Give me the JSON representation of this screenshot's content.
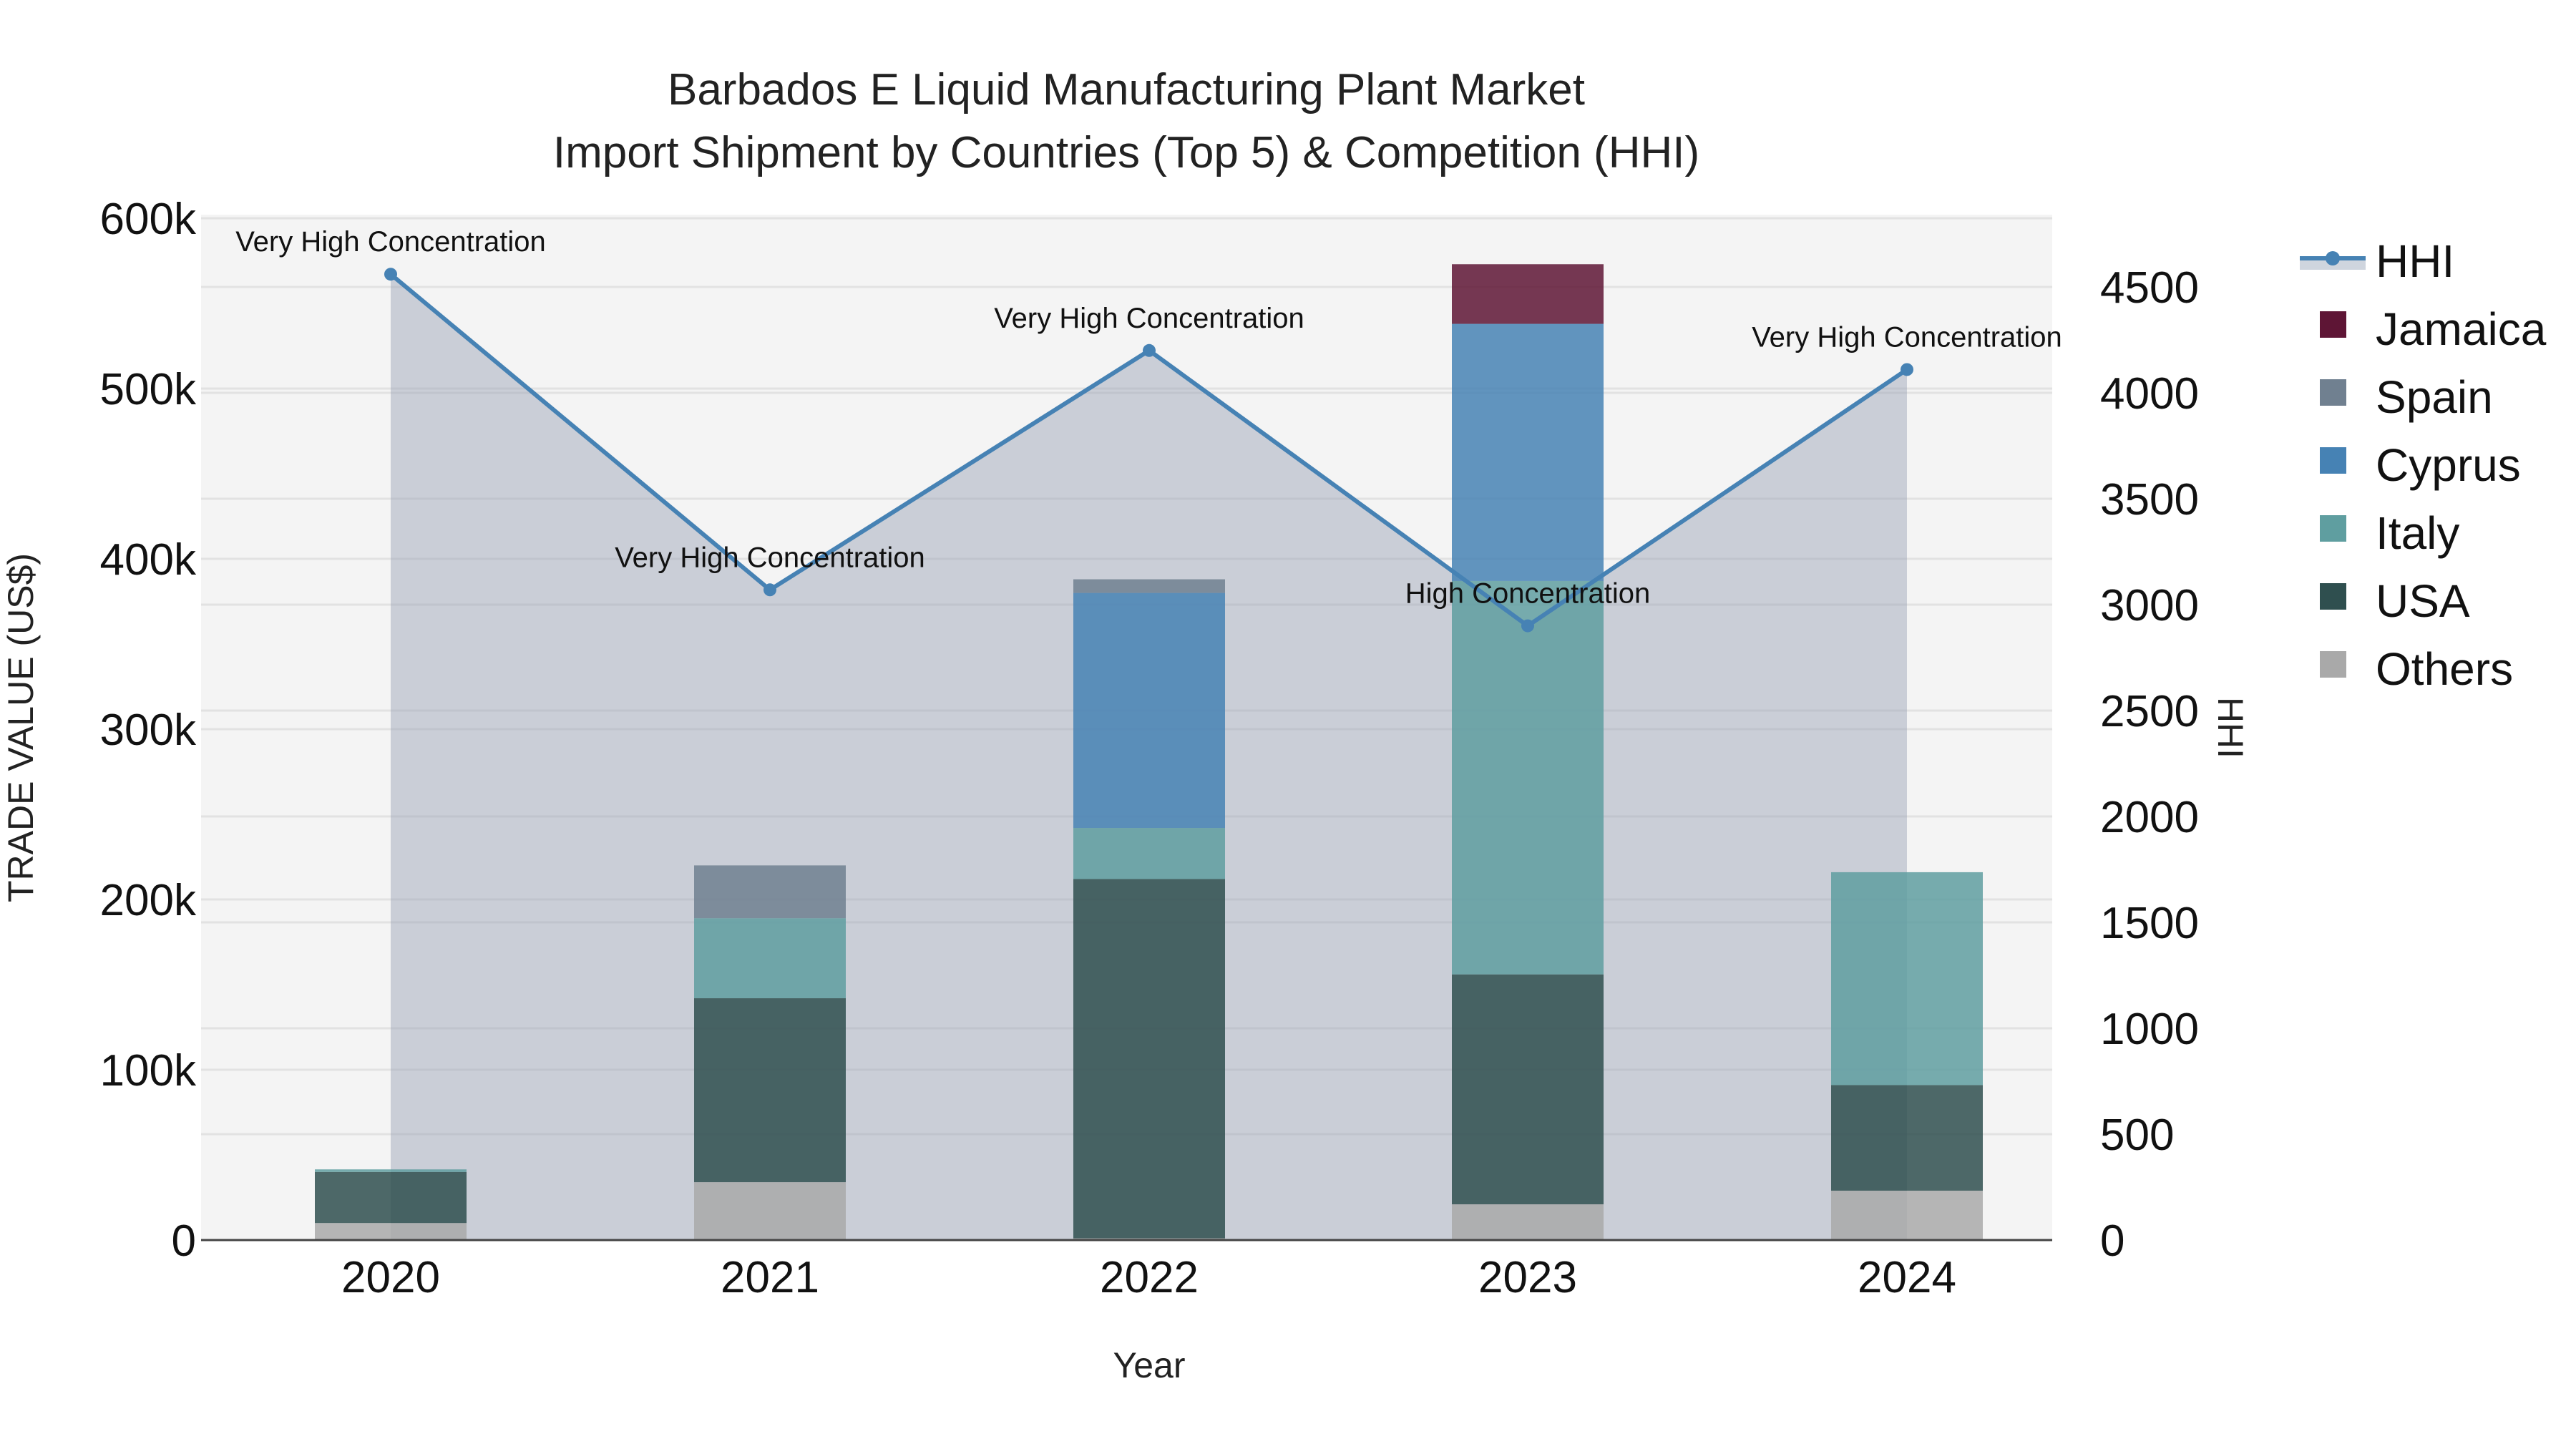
{
  "title": {
    "line1": "Barbados E Liquid Manufacturing Plant Market",
    "line2": "Import Shipment by Countries (Top 5) & Competition (HHI)"
  },
  "axes": {
    "x_title": "Year",
    "y_left_title": "TRADE VALUE (US$)",
    "y_right_title": "HHI",
    "y_left_ticks": [
      "0",
      "100k",
      "200k",
      "300k",
      "400k",
      "500k",
      "600k"
    ],
    "y_right_ticks": [
      "0",
      "500",
      "1000",
      "1500",
      "2000",
      "2500",
      "3000",
      "3500",
      "4000",
      "4500"
    ]
  },
  "legend": {
    "items": [
      {
        "label": "HHI",
        "type": "line",
        "color": "#4682b4"
      },
      {
        "label": "Jamaica",
        "type": "bar",
        "color": "#5e1535"
      },
      {
        "label": "Spain",
        "type": "bar",
        "color": "#708090"
      },
      {
        "label": "Cyprus",
        "type": "bar",
        "color": "#4682b4"
      },
      {
        "label": "Italy",
        "type": "bar",
        "color": "#5f9ea0"
      },
      {
        "label": "USA",
        "type": "bar",
        "color": "#2f4f4f"
      },
      {
        "label": "Others",
        "type": "bar",
        "color": "#a9a9a9"
      }
    ]
  },
  "chart_data": {
    "type": "bar",
    "subtype": "stacked bar with HHI line on secondary axis",
    "title": "Barbados E Liquid Manufacturing Plant Market — Import Shipment by Countries (Top 5) & Competition (HHI)",
    "xlabel": "Year",
    "ylabel": "TRADE VALUE (US$)",
    "y2label": "HHI",
    "categories": [
      "2020",
      "2021",
      "2022",
      "2023",
      "2024"
    ],
    "ylim": [
      0,
      600000
    ],
    "y2lim": [
      0,
      4800
    ],
    "grid": true,
    "legend_position": "right",
    "series": [
      {
        "name": "Others",
        "color": "#a9a9a9",
        "values": [
          10000,
          34000,
          1000,
          21000,
          29000
        ]
      },
      {
        "name": "USA",
        "color": "#2f4f4f",
        "values": [
          30000,
          108000,
          211000,
          135000,
          62000
        ]
      },
      {
        "name": "Italy",
        "color": "#5f9ea0",
        "values": [
          1500,
          47000,
          30000,
          231000,
          125000
        ]
      },
      {
        "name": "Cyprus",
        "color": "#4682b4",
        "values": [
          0,
          0,
          138000,
          151000,
          0
        ]
      },
      {
        "name": "Spain",
        "color": "#708090",
        "values": [
          0,
          31000,
          8000,
          0,
          0
        ]
      },
      {
        "name": "Jamaica",
        "color": "#5e1535",
        "values": [
          0,
          0,
          0,
          35000,
          0
        ]
      }
    ],
    "line_series": {
      "name": "HHI",
      "axis": "right",
      "color": "#4682b4",
      "values": [
        4560,
        3070,
        4200,
        2900,
        4110
      ],
      "annotations": [
        "Very High Concentration",
        "Very High Concentration",
        "Very High Concentration",
        "High Concentration",
        "Very High Concentration"
      ]
    }
  }
}
